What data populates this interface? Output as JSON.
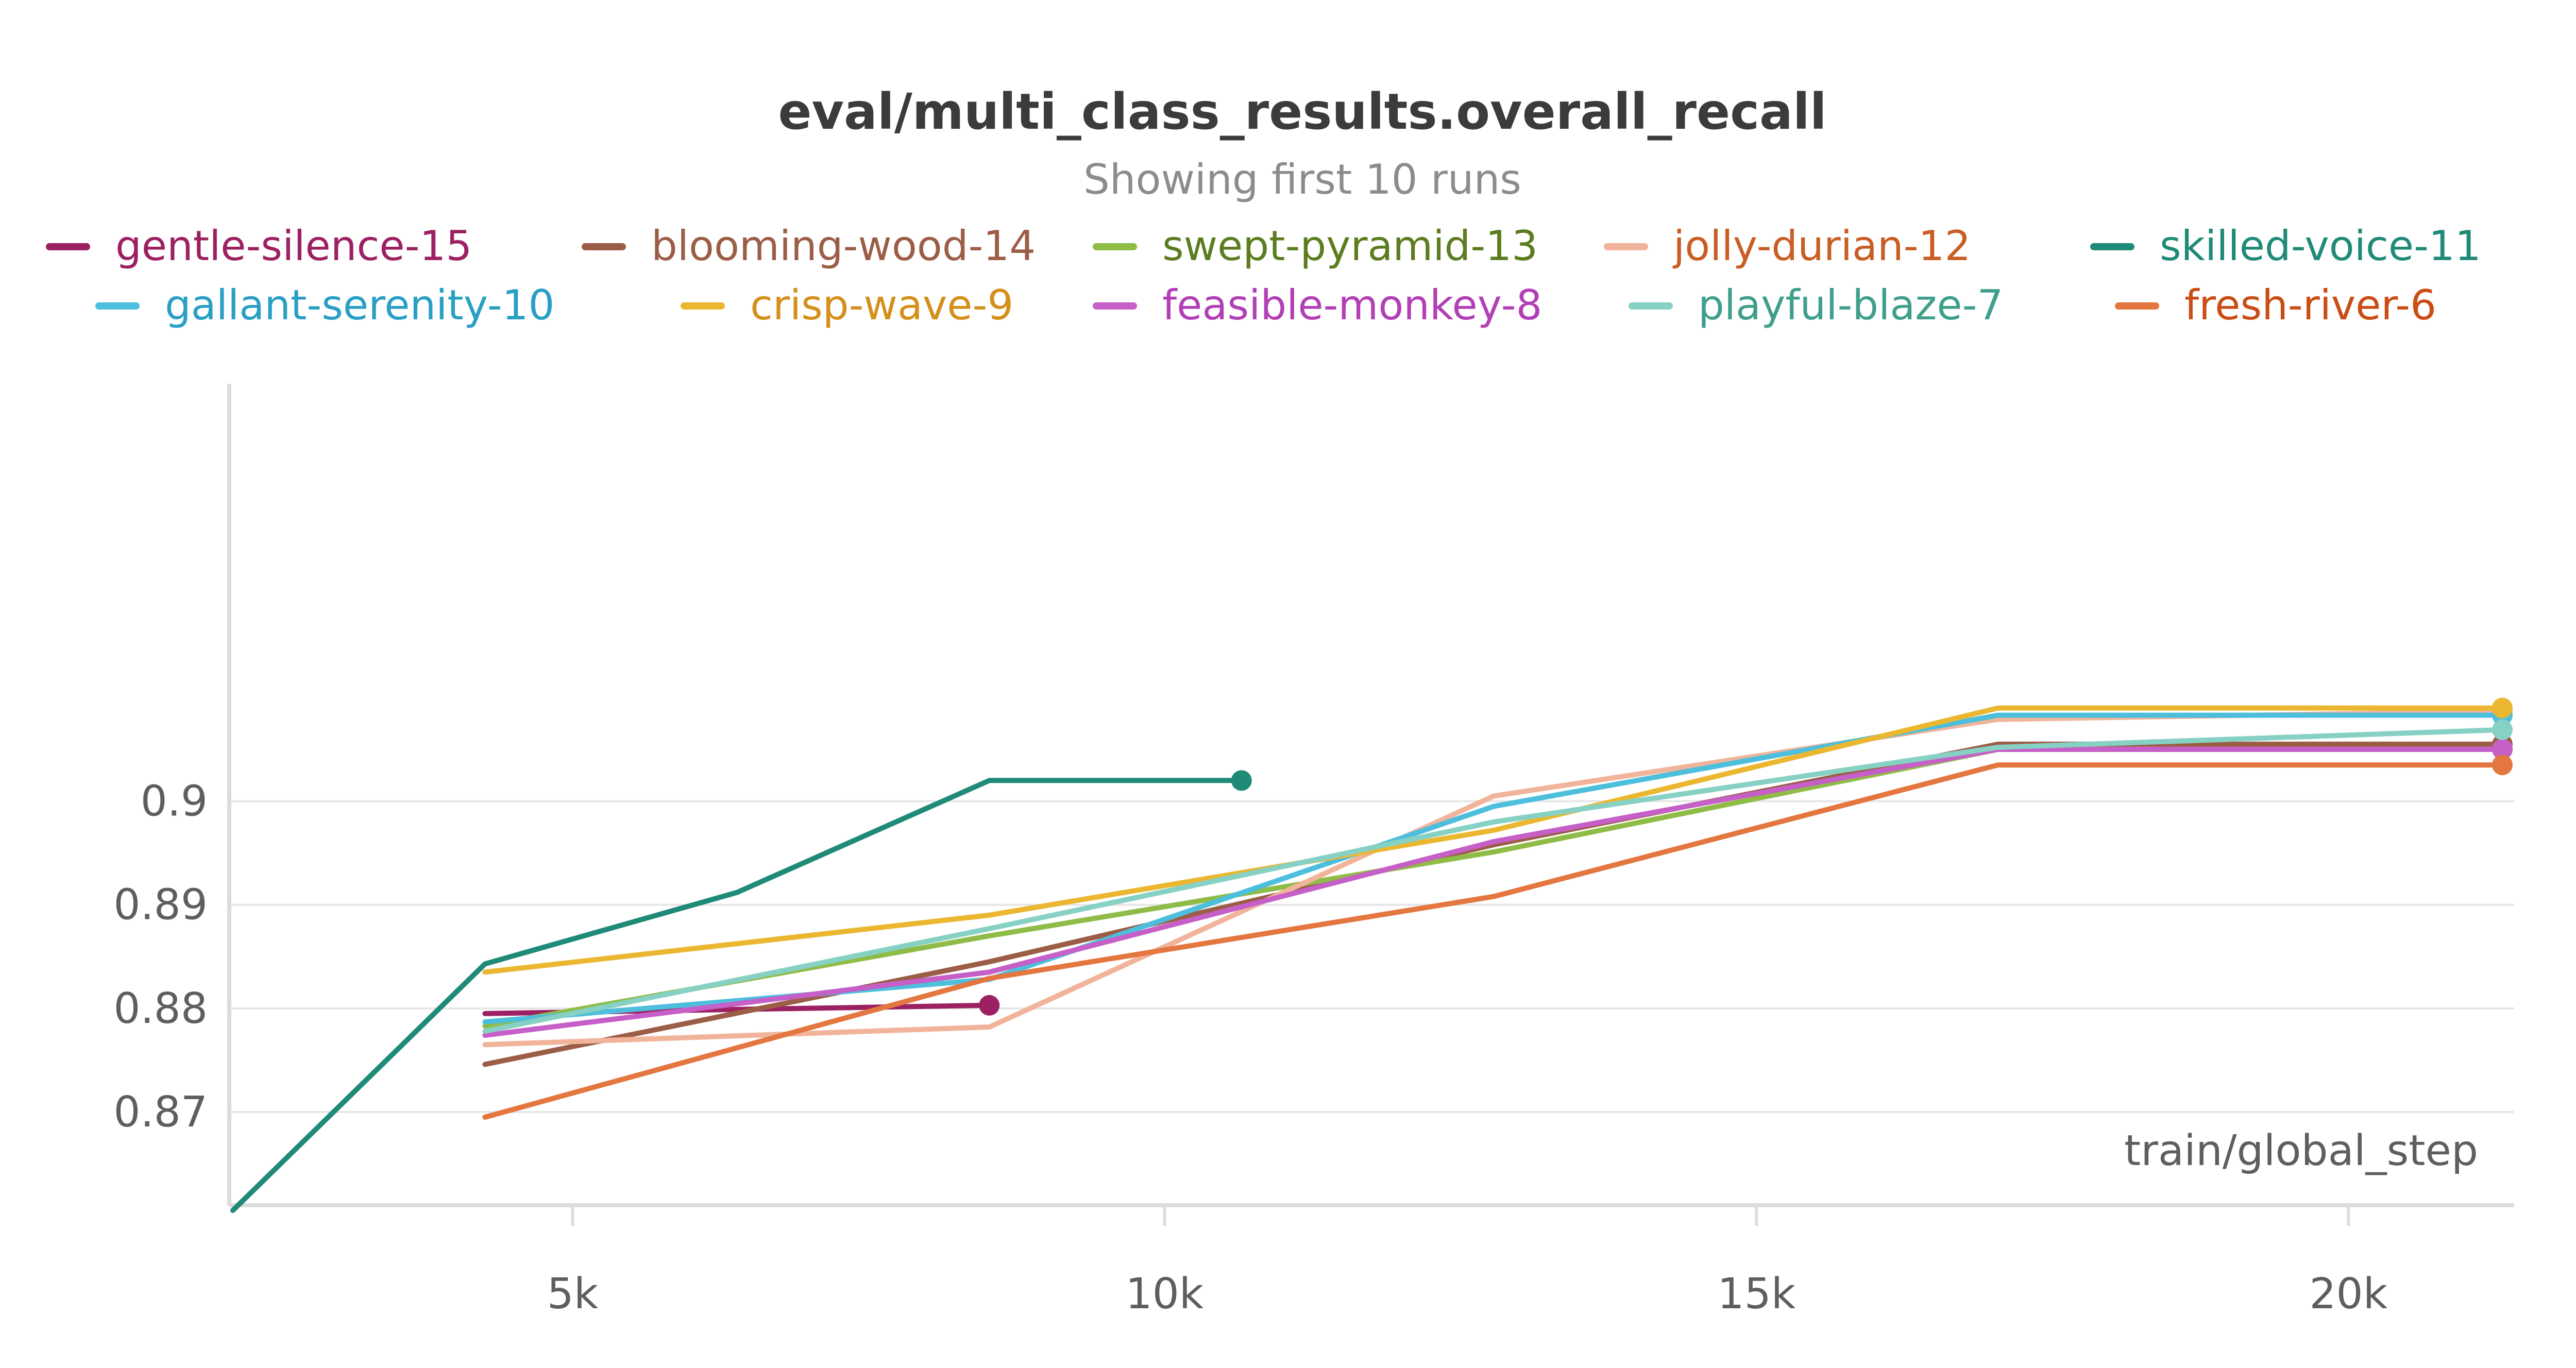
{
  "chart_data": {
    "type": "line",
    "title": "eval/multi_class_results.overall_recall",
    "subtitle": "Showing first 10 runs",
    "xlabel": "train/global_step",
    "ylabel": "",
    "xlim": [
      2100,
      21400
    ],
    "ylim": [
      0.861,
      0.9403
    ],
    "xticks": [
      {
        "value": 5000,
        "label": "5k"
      },
      {
        "value": 10000,
        "label": "10k"
      },
      {
        "value": 15000,
        "label": "15k"
      },
      {
        "value": 20000,
        "label": "20k"
      }
    ],
    "yticks": [
      {
        "value": 0.87,
        "label": "0.87"
      },
      {
        "value": 0.88,
        "label": "0.88"
      },
      {
        "value": 0.89,
        "label": "0.89"
      },
      {
        "value": 0.9,
        "label": "0.9"
      }
    ],
    "grid": true,
    "legend_position": "top",
    "series": [
      {
        "name": "gentle-silence-15",
        "color": "#9c2162",
        "text_color": "#9c2162",
        "x": [
          4260,
          8520
        ],
        "y": [
          0.8795,
          0.8803
        ]
      },
      {
        "name": "blooming-wood-14",
        "color": "#9c5d47",
        "text_color": "#9c5d47",
        "x": [
          4260,
          8520,
          12780,
          17040,
          21300
        ],
        "y": [
          0.8746,
          0.8845,
          0.8958,
          0.9055,
          0.9055
        ]
      },
      {
        "name": "swept-pyramid-13",
        "color": "#8fbc47",
        "text_color": "#5c7d1f",
        "x": [
          4260,
          8520,
          12780,
          17040,
          21300
        ],
        "y": [
          0.8783,
          0.887,
          0.8951,
          0.905,
          0.905
        ]
      },
      {
        "name": "jolly-durian-12",
        "color": "#f1b49a",
        "text_color": "#c85e23",
        "x": [
          4260,
          8520,
          12780,
          17040,
          21300
        ],
        "y": [
          0.8765,
          0.8782,
          0.9005,
          0.9079,
          0.9087
        ]
      },
      {
        "name": "skilled-voice-11",
        "color": "#1f8a78",
        "text_color": "#1f8a78",
        "x": [
          2130,
          4260,
          6390,
          8520,
          10650
        ],
        "y": [
          0.8605,
          0.8843,
          0.8912,
          0.902,
          0.902
        ]
      },
      {
        "name": "gallant-serenity-10",
        "color": "#4dbfdc",
        "text_color": "#2a9fc4",
        "x": [
          4260,
          8520,
          12780,
          17040,
          21300
        ],
        "y": [
          0.8787,
          0.8828,
          0.8995,
          0.9083,
          0.9083
        ]
      },
      {
        "name": "crisp-wave-9",
        "color": "#ebb731",
        "text_color": "#d4901a",
        "x": [
          4260,
          8520,
          12780,
          17040,
          21300
        ],
        "y": [
          0.8835,
          0.889,
          0.8972,
          0.909,
          0.909
        ]
      },
      {
        "name": "feasible-monkey-8",
        "color": "#c65fc8",
        "text_color": "#b23fb5",
        "x": [
          4260,
          8520,
          12780,
          17040,
          21300
        ],
        "y": [
          0.8774,
          0.8835,
          0.8961,
          0.905,
          0.905
        ]
      },
      {
        "name": "playful-blaze-7",
        "color": "#86d1c4",
        "text_color": "#3f9f8c",
        "x": [
          4260,
          8520,
          12780,
          17040,
          21300
        ],
        "y": [
          0.8778,
          0.8877,
          0.898,
          0.9052,
          0.9069
        ]
      },
      {
        "name": "fresh-river-6",
        "color": "#e47640",
        "text_color": "#c94d15",
        "x": [
          4260,
          8520,
          12780,
          17040,
          21300
        ],
        "y": [
          0.8695,
          0.8829,
          0.8908,
          0.9035,
          0.9035
        ]
      }
    ]
  }
}
